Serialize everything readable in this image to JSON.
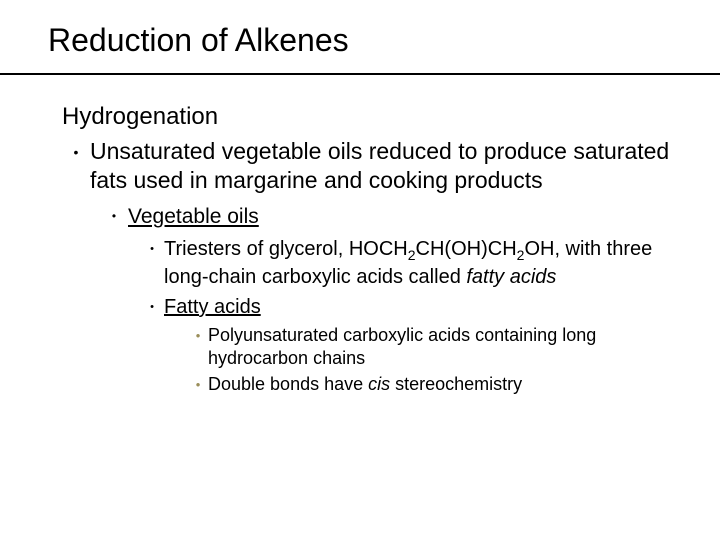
{
  "title": "Reduction of Alkenes",
  "subtitle": "Hydrogenation",
  "colors": {
    "background": "#ffffff",
    "text": "#000000",
    "rule": "#000000",
    "lvl4_bullet": "#9a8e5a"
  },
  "typography": {
    "family": "Arial",
    "title_size": 32,
    "subtitle_size": 24,
    "lvl1_size": 23,
    "lvl2_size": 21,
    "lvl3_size": 20,
    "lvl4_size": 18
  },
  "bullets": {
    "lvl1": {
      "text": "Unsaturated vegetable oils reduced to produce saturated fats used in margarine and cooking products"
    },
    "lvl2": {
      "text": "Vegetable oils",
      "underline": true
    },
    "lvl3a": {
      "prefix": "Triesters of glycerol, HOCH",
      "sub1": "2",
      "mid1": "CH(OH)CH",
      "sub2": "2",
      "mid2": "OH, with three long-chain carboxylic acids called ",
      "italic": "fatty acids"
    },
    "lvl3b": {
      "text": "Fatty acids",
      "underline": true
    },
    "lvl4a": {
      "text": "Polyunsaturated carboxylic acids containing long hydrocarbon chains"
    },
    "lvl4b": {
      "prefix": "Double bonds have ",
      "italic": "cis",
      "suffix": " stereochemistry"
    }
  }
}
